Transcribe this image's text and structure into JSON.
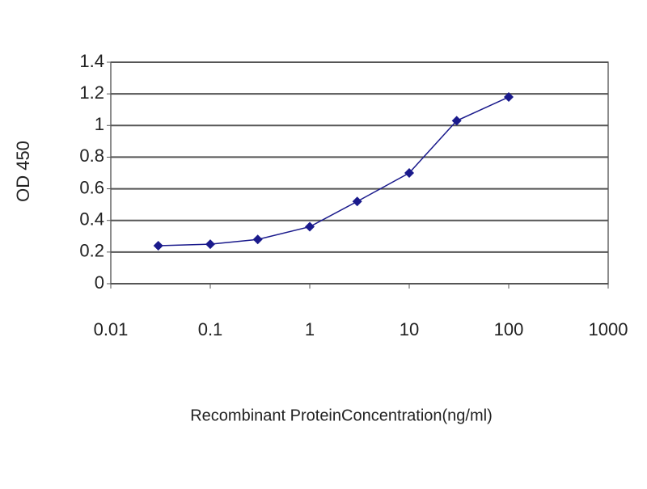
{
  "chart_data": {
    "type": "line",
    "x_label": "Recombinant ProteinConcentration(ng/ml)",
    "y_label": "OD 450",
    "x": [
      0.03,
      0.1,
      0.3,
      1,
      3,
      10,
      30,
      100
    ],
    "values": [
      0.24,
      0.25,
      0.28,
      0.36,
      0.52,
      0.7,
      1.03,
      1.18
    ],
    "color": "#1a1a8c",
    "xlim": [
      0.01,
      1000
    ],
    "xticks": [
      0.01,
      0.1,
      1,
      10,
      100,
      1000
    ],
    "log_x": true,
    "ylim": [
      0,
      1.4
    ],
    "yticks": [
      0,
      0.2,
      0.4,
      0.6,
      0.8,
      1,
      1.2,
      1.4
    ],
    "grid": true
  }
}
